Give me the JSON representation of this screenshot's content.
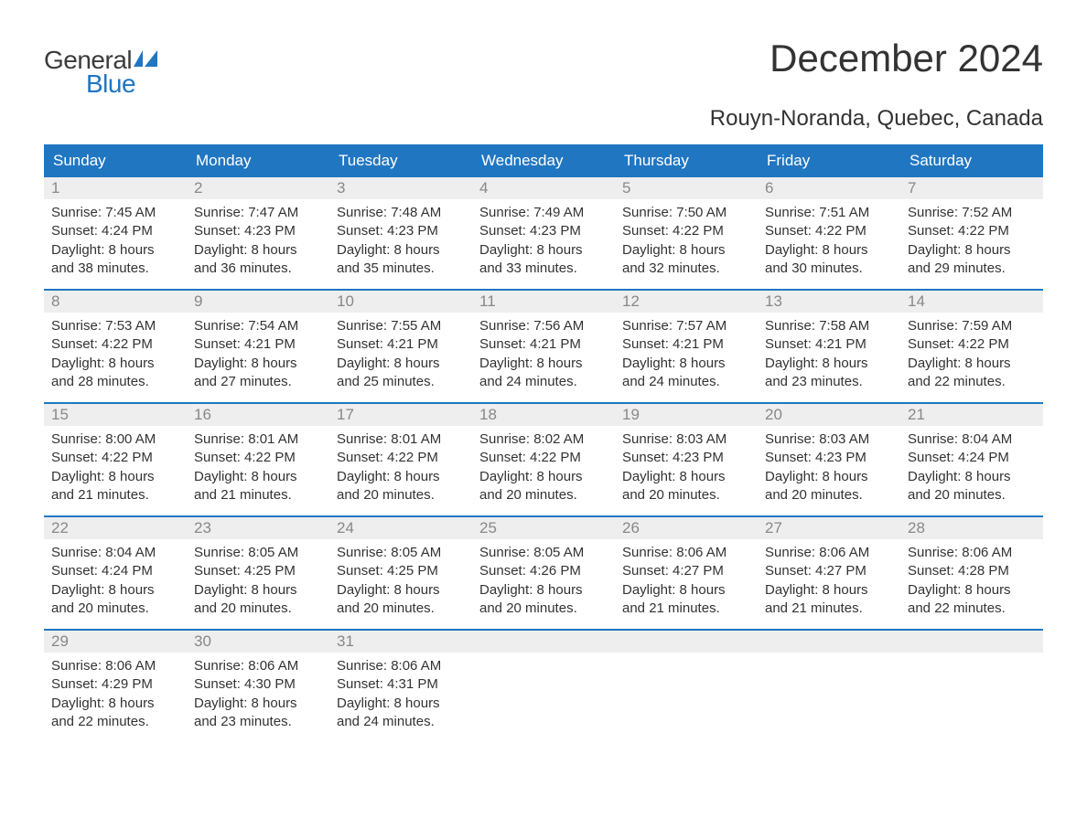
{
  "brand": {
    "word1": "General",
    "word2": "Blue",
    "logo_color_dark": "#3b3b3b",
    "logo_color_blue": "#2176c1"
  },
  "title": "December 2024",
  "location": "Rouyn-Noranda, Quebec, Canada",
  "colors": {
    "header_bg": "#2176c1",
    "header_text": "#ffffff",
    "daynum_bg": "#eeeeee",
    "daynum_text": "#888888",
    "body_text": "#333333",
    "week_border": "#2176c1",
    "page_bg": "#ffffff"
  },
  "weekdays": [
    "Sunday",
    "Monday",
    "Tuesday",
    "Wednesday",
    "Thursday",
    "Friday",
    "Saturday"
  ],
  "weeks": [
    [
      {
        "n": "1",
        "sunrise": "Sunrise: 7:45 AM",
        "sunset": "Sunset: 4:24 PM",
        "dl1": "Daylight: 8 hours",
        "dl2": "and 38 minutes."
      },
      {
        "n": "2",
        "sunrise": "Sunrise: 7:47 AM",
        "sunset": "Sunset: 4:23 PM",
        "dl1": "Daylight: 8 hours",
        "dl2": "and 36 minutes."
      },
      {
        "n": "3",
        "sunrise": "Sunrise: 7:48 AM",
        "sunset": "Sunset: 4:23 PM",
        "dl1": "Daylight: 8 hours",
        "dl2": "and 35 minutes."
      },
      {
        "n": "4",
        "sunrise": "Sunrise: 7:49 AM",
        "sunset": "Sunset: 4:23 PM",
        "dl1": "Daylight: 8 hours",
        "dl2": "and 33 minutes."
      },
      {
        "n": "5",
        "sunrise": "Sunrise: 7:50 AM",
        "sunset": "Sunset: 4:22 PM",
        "dl1": "Daylight: 8 hours",
        "dl2": "and 32 minutes."
      },
      {
        "n": "6",
        "sunrise": "Sunrise: 7:51 AM",
        "sunset": "Sunset: 4:22 PM",
        "dl1": "Daylight: 8 hours",
        "dl2": "and 30 minutes."
      },
      {
        "n": "7",
        "sunrise": "Sunrise: 7:52 AM",
        "sunset": "Sunset: 4:22 PM",
        "dl1": "Daylight: 8 hours",
        "dl2": "and 29 minutes."
      }
    ],
    [
      {
        "n": "8",
        "sunrise": "Sunrise: 7:53 AM",
        "sunset": "Sunset: 4:22 PM",
        "dl1": "Daylight: 8 hours",
        "dl2": "and 28 minutes."
      },
      {
        "n": "9",
        "sunrise": "Sunrise: 7:54 AM",
        "sunset": "Sunset: 4:21 PM",
        "dl1": "Daylight: 8 hours",
        "dl2": "and 27 minutes."
      },
      {
        "n": "10",
        "sunrise": "Sunrise: 7:55 AM",
        "sunset": "Sunset: 4:21 PM",
        "dl1": "Daylight: 8 hours",
        "dl2": "and 25 minutes."
      },
      {
        "n": "11",
        "sunrise": "Sunrise: 7:56 AM",
        "sunset": "Sunset: 4:21 PM",
        "dl1": "Daylight: 8 hours",
        "dl2": "and 24 minutes."
      },
      {
        "n": "12",
        "sunrise": "Sunrise: 7:57 AM",
        "sunset": "Sunset: 4:21 PM",
        "dl1": "Daylight: 8 hours",
        "dl2": "and 24 minutes."
      },
      {
        "n": "13",
        "sunrise": "Sunrise: 7:58 AM",
        "sunset": "Sunset: 4:21 PM",
        "dl1": "Daylight: 8 hours",
        "dl2": "and 23 minutes."
      },
      {
        "n": "14",
        "sunrise": "Sunrise: 7:59 AM",
        "sunset": "Sunset: 4:22 PM",
        "dl1": "Daylight: 8 hours",
        "dl2": "and 22 minutes."
      }
    ],
    [
      {
        "n": "15",
        "sunrise": "Sunrise: 8:00 AM",
        "sunset": "Sunset: 4:22 PM",
        "dl1": "Daylight: 8 hours",
        "dl2": "and 21 minutes."
      },
      {
        "n": "16",
        "sunrise": "Sunrise: 8:01 AM",
        "sunset": "Sunset: 4:22 PM",
        "dl1": "Daylight: 8 hours",
        "dl2": "and 21 minutes."
      },
      {
        "n": "17",
        "sunrise": "Sunrise: 8:01 AM",
        "sunset": "Sunset: 4:22 PM",
        "dl1": "Daylight: 8 hours",
        "dl2": "and 20 minutes."
      },
      {
        "n": "18",
        "sunrise": "Sunrise: 8:02 AM",
        "sunset": "Sunset: 4:22 PM",
        "dl1": "Daylight: 8 hours",
        "dl2": "and 20 minutes."
      },
      {
        "n": "19",
        "sunrise": "Sunrise: 8:03 AM",
        "sunset": "Sunset: 4:23 PM",
        "dl1": "Daylight: 8 hours",
        "dl2": "and 20 minutes."
      },
      {
        "n": "20",
        "sunrise": "Sunrise: 8:03 AM",
        "sunset": "Sunset: 4:23 PM",
        "dl1": "Daylight: 8 hours",
        "dl2": "and 20 minutes."
      },
      {
        "n": "21",
        "sunrise": "Sunrise: 8:04 AM",
        "sunset": "Sunset: 4:24 PM",
        "dl1": "Daylight: 8 hours",
        "dl2": "and 20 minutes."
      }
    ],
    [
      {
        "n": "22",
        "sunrise": "Sunrise: 8:04 AM",
        "sunset": "Sunset: 4:24 PM",
        "dl1": "Daylight: 8 hours",
        "dl2": "and 20 minutes."
      },
      {
        "n": "23",
        "sunrise": "Sunrise: 8:05 AM",
        "sunset": "Sunset: 4:25 PM",
        "dl1": "Daylight: 8 hours",
        "dl2": "and 20 minutes."
      },
      {
        "n": "24",
        "sunrise": "Sunrise: 8:05 AM",
        "sunset": "Sunset: 4:25 PM",
        "dl1": "Daylight: 8 hours",
        "dl2": "and 20 minutes."
      },
      {
        "n": "25",
        "sunrise": "Sunrise: 8:05 AM",
        "sunset": "Sunset: 4:26 PM",
        "dl1": "Daylight: 8 hours",
        "dl2": "and 20 minutes."
      },
      {
        "n": "26",
        "sunrise": "Sunrise: 8:06 AM",
        "sunset": "Sunset: 4:27 PM",
        "dl1": "Daylight: 8 hours",
        "dl2": "and 21 minutes."
      },
      {
        "n": "27",
        "sunrise": "Sunrise: 8:06 AM",
        "sunset": "Sunset: 4:27 PM",
        "dl1": "Daylight: 8 hours",
        "dl2": "and 21 minutes."
      },
      {
        "n": "28",
        "sunrise": "Sunrise: 8:06 AM",
        "sunset": "Sunset: 4:28 PM",
        "dl1": "Daylight: 8 hours",
        "dl2": "and 22 minutes."
      }
    ],
    [
      {
        "n": "29",
        "sunrise": "Sunrise: 8:06 AM",
        "sunset": "Sunset: 4:29 PM",
        "dl1": "Daylight: 8 hours",
        "dl2": "and 22 minutes."
      },
      {
        "n": "30",
        "sunrise": "Sunrise: 8:06 AM",
        "sunset": "Sunset: 4:30 PM",
        "dl1": "Daylight: 8 hours",
        "dl2": "and 23 minutes."
      },
      {
        "n": "31",
        "sunrise": "Sunrise: 8:06 AM",
        "sunset": "Sunset: 4:31 PM",
        "dl1": "Daylight: 8 hours",
        "dl2": "and 24 minutes."
      },
      {
        "empty": true
      },
      {
        "empty": true
      },
      {
        "empty": true
      },
      {
        "empty": true
      }
    ]
  ]
}
